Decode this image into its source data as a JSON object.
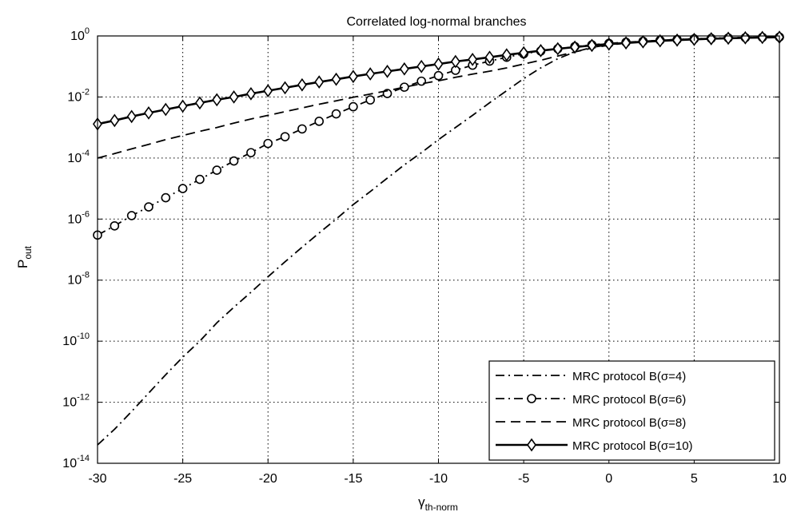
{
  "chart_data": {
    "type": "line",
    "title": "Correlated log-normal branches",
    "xlabel": "γ",
    "xlabel_subscript": "th-norm",
    "ylabel": "P",
    "ylabel_subscript": "out",
    "xlim": [
      -30,
      10
    ],
    "ylim_log10": [
      -14,
      0
    ],
    "y_scale": "log",
    "grid": true,
    "legend_position": "bottom-right",
    "x_ticks": [
      "-30",
      "-25",
      "-20",
      "-15",
      "-10",
      "-5",
      "0",
      "5",
      "10"
    ],
    "y_tick_base": "10",
    "y_tick_exponents": [
      "0",
      "-2",
      "-4",
      "-6",
      "-8",
      "-10",
      "-12",
      "-14"
    ],
    "x": [
      -30,
      -29,
      -28,
      -27,
      -26,
      -25,
      -24,
      -23,
      -22,
      -21,
      -20,
      -19,
      -18,
      -17,
      -16,
      -15,
      -14,
      -13,
      -12,
      -11,
      -10,
      -9,
      -8,
      -7,
      -6,
      -5,
      -4,
      -3,
      -2,
      -1,
      0,
      1,
      2,
      3,
      4,
      5,
      6,
      7,
      8,
      9,
      10
    ],
    "series": [
      {
        "name": "MRC protocol B(σ=4)",
        "line_style": "dashdot",
        "marker": "none",
        "y": [
          4e-14,
          1.3e-13,
          5e-13,
          2e-12,
          8e-12,
          3e-11,
          1e-10,
          4e-10,
          1.3e-09,
          4e-09,
          1.3e-08,
          4e-08,
          1.2e-07,
          3.5e-07,
          1e-06,
          3e-06,
          8e-06,
          2.2e-05,
          6e-05,
          0.00015,
          0.0004,
          0.001,
          0.0025,
          0.0065,
          0.016,
          0.04,
          0.09,
          0.18,
          0.3,
          0.42,
          0.52,
          0.6,
          0.67,
          0.72,
          0.77,
          0.81,
          0.84,
          0.87,
          0.89,
          0.91,
          0.92
        ]
      },
      {
        "name": "MRC protocol B(σ=6)",
        "line_style": "dashdot",
        "marker": "circle",
        "y": [
          3e-07,
          6e-07,
          1.3e-06,
          2.5e-06,
          5e-06,
          1e-05,
          2e-05,
          4e-05,
          8e-05,
          0.00015,
          0.0003,
          0.0005,
          0.0009,
          0.0016,
          0.0028,
          0.0048,
          0.008,
          0.013,
          0.021,
          0.033,
          0.05,
          0.075,
          0.11,
          0.15,
          0.2,
          0.26,
          0.32,
          0.38,
          0.45,
          0.51,
          0.57,
          0.62,
          0.67,
          0.72,
          0.76,
          0.8,
          0.83,
          0.86,
          0.88,
          0.9,
          0.92
        ]
      },
      {
        "name": "MRC protocol B(σ=8)",
        "line_style": "dashed",
        "marker": "none",
        "y": [
          0.0001,
          0.00014,
          0.0002,
          0.00028,
          0.0004,
          0.00055,
          0.00075,
          0.001,
          0.0014,
          0.0019,
          0.0025,
          0.0033,
          0.0044,
          0.0058,
          0.0075,
          0.0098,
          0.0125,
          0.016,
          0.021,
          0.027,
          0.034,
          0.044,
          0.056,
          0.07,
          0.09,
          0.12,
          0.16,
          0.22,
          0.3,
          0.4,
          0.5,
          0.58,
          0.65,
          0.71,
          0.76,
          0.8,
          0.84,
          0.87,
          0.89,
          0.91,
          0.93
        ]
      },
      {
        "name": "MRC protocol B(σ=10)",
        "line_style": "solid",
        "marker": "diamond",
        "y": [
          0.0013,
          0.0017,
          0.0023,
          0.003,
          0.0039,
          0.005,
          0.0064,
          0.0081,
          0.01,
          0.0128,
          0.016,
          0.02,
          0.025,
          0.031,
          0.038,
          0.047,
          0.057,
          0.069,
          0.083,
          0.1,
          0.12,
          0.145,
          0.17,
          0.2,
          0.24,
          0.28,
          0.33,
          0.38,
          0.43,
          0.49,
          0.54,
          0.59,
          0.64,
          0.69,
          0.73,
          0.77,
          0.81,
          0.84,
          0.87,
          0.89,
          0.91
        ]
      }
    ]
  }
}
